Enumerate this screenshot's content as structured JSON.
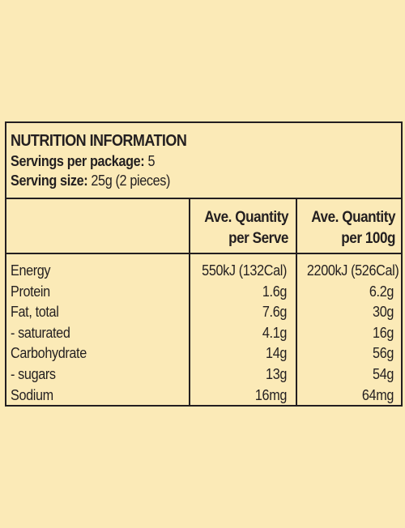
{
  "panel": {
    "title": "NUTRITION INFORMATION",
    "servings_label": "Servings per package:",
    "servings_value": "5",
    "serving_size_label": "Serving size:",
    "serving_size_value": "25g (2 pieces)"
  },
  "columns": {
    "serve_line1": "Ave. Quantity",
    "serve_line2": "per Serve",
    "per100_line1": "Ave. Quantity",
    "per100_line2": "per 100g"
  },
  "rows": [
    {
      "name": "Energy",
      "per_serve": "550kJ (132Cal)",
      "per_100g": "2200kJ (526Cal)"
    },
    {
      "name": "Protein",
      "per_serve": "1.6g",
      "per_100g": "6.2g"
    },
    {
      "name": "Fat, total",
      "per_serve": "7.6g",
      "per_100g": "30g"
    },
    {
      "name": "- saturated",
      "per_serve": "4.1g",
      "per_100g": "16g"
    },
    {
      "name": "Carbohydrate",
      "per_serve": "14g",
      "per_100g": "56g"
    },
    {
      "name": "- sugars",
      "per_serve": "13g",
      "per_100g": "54g"
    },
    {
      "name": "Sodium",
      "per_serve": "16mg",
      "per_100g": "64mg"
    }
  ]
}
